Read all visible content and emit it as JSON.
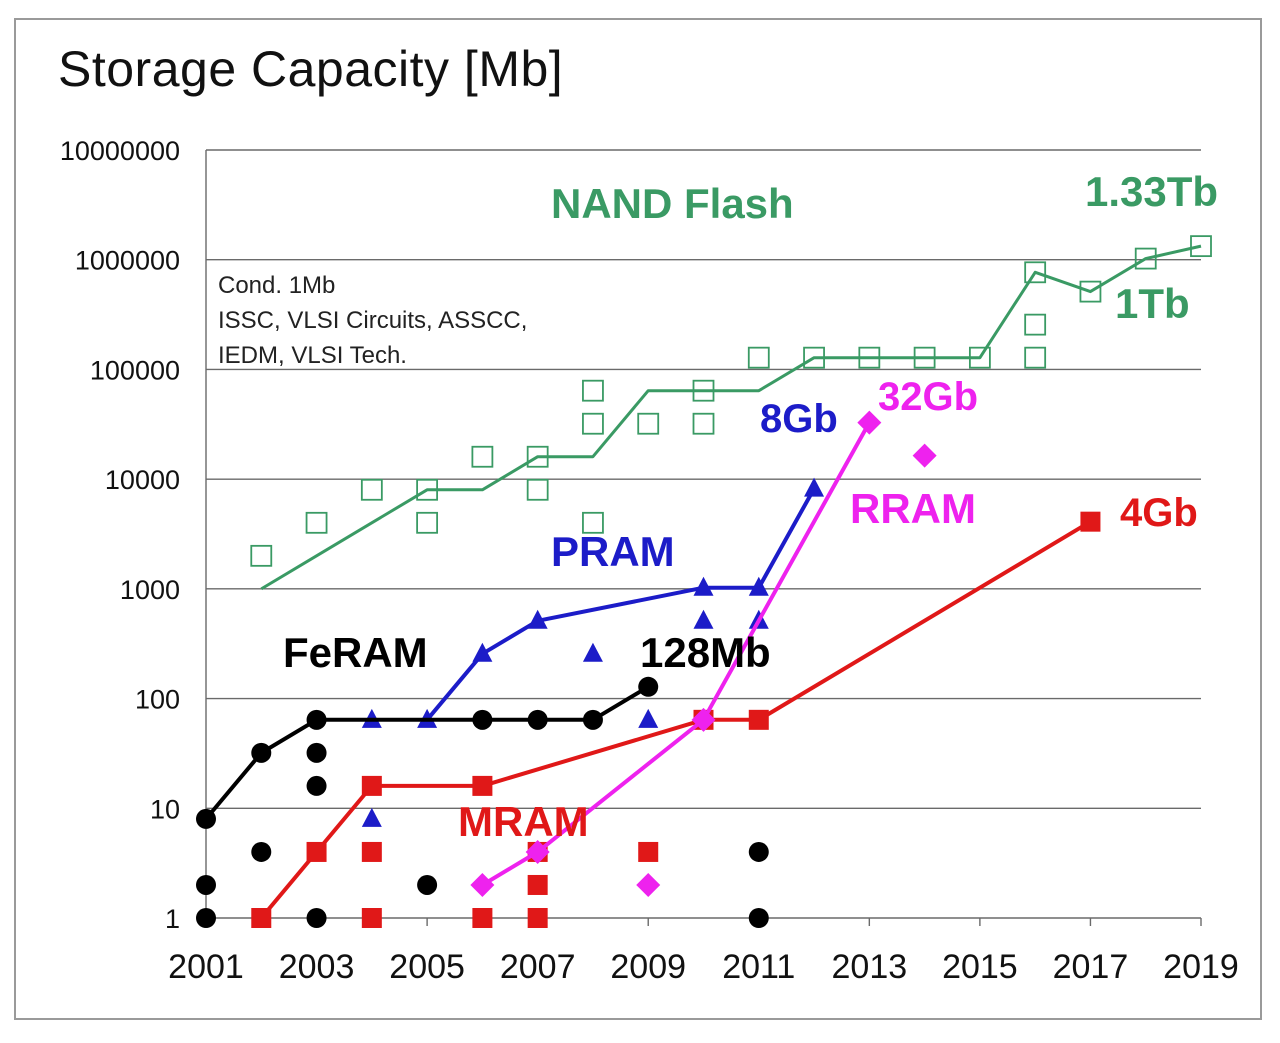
{
  "chart_data": {
    "type": "line",
    "title": "Storage Capacity [Mb]",
    "yscale": "log",
    "ylim": [
      1,
      10000000
    ],
    "xlim": [
      2001,
      2019
    ],
    "x_ticks": [
      "2001",
      "2003",
      "2005",
      "2007",
      "2009",
      "2011",
      "2013",
      "2015",
      "2017",
      "2019"
    ],
    "y_ticks": [
      "10000000",
      "1000000",
      "100000",
      "10000",
      "1000",
      "100",
      "10",
      "1"
    ],
    "grid": "horizontal",
    "note_lines": [
      "Cond. 1Mb",
      "ISSC, VLSI Circuits, ASSCC,",
      "IEDM, VLSI Tech."
    ],
    "series": [
      {
        "name": "NAND Flash",
        "color": "#3a9a64",
        "marker": "open-square",
        "line": [
          [
            2002,
            1000
          ],
          [
            2003,
            2000
          ],
          [
            2004,
            4000
          ],
          [
            2005,
            8000
          ],
          [
            2006,
            8000
          ],
          [
            2007,
            16000
          ],
          [
            2008,
            16000
          ],
          [
            2009,
            64000
          ],
          [
            2010,
            64000
          ],
          [
            2011,
            64000
          ],
          [
            2012,
            128000
          ],
          [
            2013,
            128000
          ],
          [
            2014,
            128000
          ],
          [
            2015,
            128000
          ],
          [
            2016,
            768000
          ],
          [
            2017,
            512000
          ],
          [
            2018,
            1024000
          ],
          [
            2019,
            1330000
          ]
        ],
        "points": [
          [
            2002,
            2000
          ],
          [
            2003,
            4000
          ],
          [
            2004,
            8000
          ],
          [
            2005,
            8000
          ],
          [
            2005,
            4000
          ],
          [
            2006,
            16000
          ],
          [
            2007,
            16000
          ],
          [
            2007,
            8000
          ],
          [
            2008,
            64000
          ],
          [
            2008,
            32000
          ],
          [
            2008,
            4000
          ],
          [
            2009,
            32000
          ],
          [
            2010,
            64000
          ],
          [
            2010,
            32000
          ],
          [
            2011,
            128000
          ],
          [
            2012,
            128000
          ],
          [
            2013,
            128000
          ],
          [
            2014,
            128000
          ],
          [
            2015,
            128000
          ],
          [
            2016,
            768000
          ],
          [
            2016,
            256000
          ],
          [
            2016,
            128000
          ],
          [
            2017,
            512000
          ],
          [
            2018,
            1024000
          ],
          [
            2019,
            1330000
          ]
        ]
      },
      {
        "name": "PRAM",
        "color": "#1c1cc8",
        "marker": "triangle",
        "line": [
          [
            2005,
            64
          ],
          [
            2006,
            256
          ],
          [
            2007,
            512
          ],
          [
            2010,
            1024
          ],
          [
            2011,
            1024
          ],
          [
            2012,
            8192
          ]
        ],
        "points": [
          [
            2004,
            64
          ],
          [
            2004,
            8
          ],
          [
            2005,
            64
          ],
          [
            2006,
            256
          ],
          [
            2007,
            512
          ],
          [
            2008,
            256
          ],
          [
            2009,
            64
          ],
          [
            2010,
            1024
          ],
          [
            2010,
            512
          ],
          [
            2011,
            1024
          ],
          [
            2011,
            512
          ],
          [
            2012,
            8192
          ]
        ]
      },
      {
        "name": "FeRAM",
        "color": "#000000",
        "marker": "circle",
        "line": [
          [
            2001,
            8
          ],
          [
            2002,
            32
          ],
          [
            2003,
            64
          ],
          [
            2004,
            64
          ],
          [
            2005,
            64
          ],
          [
            2006,
            64
          ],
          [
            2007,
            64
          ],
          [
            2008,
            64
          ],
          [
            2009,
            128
          ]
        ],
        "points": [
          [
            2001,
            8
          ],
          [
            2001,
            2
          ],
          [
            2001,
            1
          ],
          [
            2002,
            32
          ],
          [
            2002,
            4
          ],
          [
            2003,
            64
          ],
          [
            2003,
            32
          ],
          [
            2003,
            16
          ],
          [
            2003,
            1
          ],
          [
            2005,
            2
          ],
          [
            2006,
            64
          ],
          [
            2007,
            64
          ],
          [
            2008,
            64
          ],
          [
            2009,
            128
          ],
          [
            2011,
            4
          ],
          [
            2011,
            1
          ]
        ]
      },
      {
        "name": "MRAM",
        "color": "#e01818",
        "marker": "square",
        "line": [
          [
            2002,
            1
          ],
          [
            2003,
            4
          ],
          [
            2004,
            16
          ],
          [
            2006,
            16
          ],
          [
            2010,
            64
          ],
          [
            2011,
            64
          ],
          [
            2017,
            4096
          ]
        ],
        "points": [
          [
            2002,
            1
          ],
          [
            2003,
            4
          ],
          [
            2004,
            16
          ],
          [
            2004,
            4
          ],
          [
            2004,
            1
          ],
          [
            2006,
            16
          ],
          [
            2006,
            1
          ],
          [
            2007,
            4
          ],
          [
            2007,
            2
          ],
          [
            2007,
            1
          ],
          [
            2009,
            4
          ],
          [
            2010,
            64
          ],
          [
            2011,
            64
          ],
          [
            2017,
            4096
          ]
        ]
      },
      {
        "name": "RRAM",
        "color": "#ee22ee",
        "marker": "diamond",
        "line": [
          [
            2006,
            2
          ],
          [
            2007,
            4
          ],
          [
            2010,
            64
          ],
          [
            2013,
            32768
          ]
        ],
        "points": [
          [
            2006,
            2
          ],
          [
            2007,
            4
          ],
          [
            2009,
            2
          ],
          [
            2010,
            64
          ],
          [
            2013,
            32768
          ],
          [
            2014,
            16384
          ]
        ]
      }
    ],
    "annotations": [
      {
        "text": "NAND Flash",
        "color": "#3a9a64"
      },
      {
        "text": "1.33Tb",
        "color": "#3a9a64"
      },
      {
        "text": "1Tb",
        "color": "#3a9a64"
      },
      {
        "text": "8Gb",
        "color": "#1c1cc8"
      },
      {
        "text": "32Gb",
        "color": "#ee22ee"
      },
      {
        "text": "RRAM",
        "color": "#ee22ee"
      },
      {
        "text": "4Gb",
        "color": "#e01818"
      },
      {
        "text": "PRAM",
        "color": "#1c1cc8"
      },
      {
        "text": "FeRAM",
        "color": "#000000"
      },
      {
        "text": "128Mb",
        "color": "#000000"
      },
      {
        "text": "MRAM",
        "color": "#e01818"
      }
    ]
  }
}
